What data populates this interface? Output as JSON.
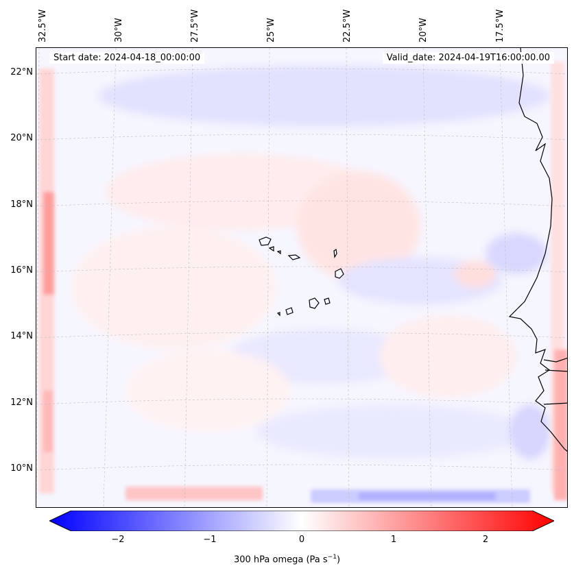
{
  "map": {
    "start_date": "Start date: 2024-04-18_00:00:00",
    "valid_date": "Valid_date: 2024-04-19T16:00:00.00",
    "lon_labels": [
      "32.5°W",
      "30°W",
      "27.5°W",
      "25°W",
      "22.5°W",
      "20°W",
      "17.5°W"
    ],
    "lat_labels": [
      "22°N",
      "20°N",
      "18°N",
      "16°N",
      "14°N",
      "12°N",
      "10°N"
    ],
    "variable": "300 hPa omega",
    "colormap": "bwr",
    "colors": {
      "negative": "#0000ff",
      "zero": "#ffffff",
      "positive": "#ff0000",
      "coastline": "#000000"
    },
    "features": [
      "Cape Verde islands",
      "West African coastline"
    ]
  },
  "colorbar": {
    "ticks": [
      "−2",
      "−1",
      "0",
      "1",
      "2"
    ],
    "tick_values": [
      -2,
      -1,
      0,
      1,
      2
    ],
    "range": [
      -2.5,
      2.5
    ],
    "label_main": "300 hPa omega (Pa s",
    "label_sup": "−1",
    "label_close": ")"
  }
}
